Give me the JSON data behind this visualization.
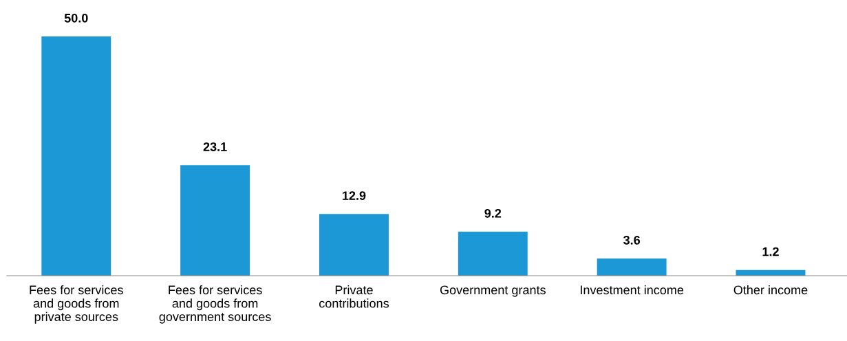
{
  "chart_data": {
    "type": "bar",
    "categories": [
      "Fees for services\nand goods from\nprivate sources",
      "Fees for services\nand goods from\ngovernment sources",
      "Private\ncontributions",
      "Government grants",
      "Investment income",
      "Other income"
    ],
    "values": [
      50.0,
      23.1,
      12.9,
      9.2,
      3.6,
      1.2
    ],
    "value_labels": [
      "50.0",
      "23.1",
      "12.9",
      "9.2",
      "3.6",
      "1.2"
    ],
    "color": "#1b98d5",
    "grid": false,
    "legend": false
  }
}
